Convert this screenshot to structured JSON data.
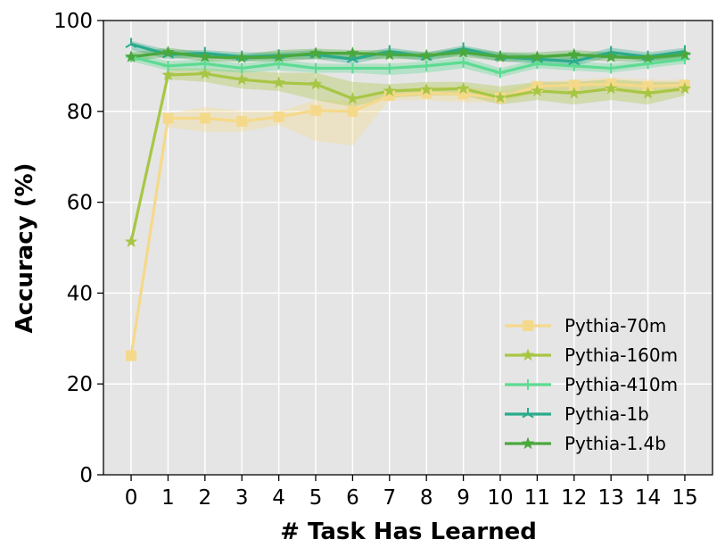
{
  "chart_data": {
    "type": "line",
    "title": "",
    "xlabel": "# Task Has Learned",
    "ylabel": "Accuracy (%)",
    "x": [
      0,
      1,
      2,
      3,
      4,
      5,
      6,
      7,
      8,
      9,
      10,
      11,
      12,
      13,
      14,
      15
    ],
    "xticks": [
      "0",
      "1",
      "2",
      "3",
      "4",
      "5",
      "6",
      "7",
      "8",
      "9",
      "10",
      "11",
      "12",
      "13",
      "14",
      "15"
    ],
    "ylim": [
      0,
      100
    ],
    "yticks": [
      "0",
      "20",
      "40",
      "60",
      "80",
      "100"
    ],
    "grid": true,
    "background": "#e5e5e5",
    "legend_position": "lower-right",
    "series": [
      {
        "name": "Pythia-70m",
        "color": "#f5d98a",
        "marker": "square",
        "values": [
          26.2,
          78.5,
          78.5,
          77.8,
          78.8,
          80.2,
          80.0,
          83.5,
          84.0,
          83.8,
          83.0,
          85.5,
          85.8,
          86.0,
          85.5,
          85.8
        ],
        "lower": [
          26.2,
          76.5,
          75.5,
          75.5,
          77.0,
          73.5,
          72.5,
          82.5,
          82.5,
          82.0,
          82.0,
          84.0,
          84.5,
          84.5,
          83.5,
          84.5
        ],
        "upper": [
          26.2,
          79.5,
          81.0,
          80.0,
          80.0,
          82.5,
          82.5,
          84.5,
          85.5,
          85.5,
          84.5,
          86.5,
          87.0,
          87.5,
          87.0,
          87.0
        ]
      },
      {
        "name": "Pythia-160m",
        "color": "#a8c645",
        "marker": "star",
        "values": [
          51.3,
          88.0,
          88.3,
          87.0,
          86.3,
          86.0,
          82.8,
          84.5,
          84.8,
          85.0,
          83.0,
          84.5,
          84.0,
          85.0,
          84.0,
          85.0
        ],
        "lower": [
          51.3,
          87.0,
          86.5,
          85.0,
          84.5,
          82.5,
          81.0,
          83.0,
          83.5,
          83.5,
          81.5,
          82.5,
          81.5,
          82.5,
          81.5,
          83.5
        ],
        "upper": [
          51.3,
          89.5,
          89.5,
          89.0,
          88.5,
          88.5,
          86.5,
          86.0,
          86.5,
          86.5,
          85.5,
          86.5,
          86.5,
          87.0,
          86.5,
          86.5
        ]
      },
      {
        "name": "Pythia-410m",
        "color": "#5ddb92",
        "marker": "plus",
        "values": [
          92.0,
          90.0,
          90.5,
          89.5,
          90.5,
          89.5,
          89.5,
          89.5,
          90.0,
          90.8,
          88.5,
          90.5,
          90.0,
          89.5,
          90.5,
          91.5
        ],
        "lower": [
          91.0,
          89.0,
          89.0,
          88.5,
          89.0,
          88.5,
          88.5,
          88.0,
          88.5,
          89.5,
          87.5,
          89.5,
          89.0,
          88.5,
          89.5,
          90.5
        ],
        "upper": [
          93.0,
          91.0,
          91.5,
          90.5,
          91.5,
          90.5,
          90.5,
          90.5,
          91.0,
          92.0,
          89.5,
          91.5,
          91.0,
          90.5,
          91.5,
          92.5
        ]
      },
      {
        "name": "Pythia-1b",
        "color": "#2aab8c",
        "marker": "tri",
        "values": [
          94.8,
          92.5,
          92.8,
          92.0,
          92.3,
          92.5,
          91.5,
          93.2,
          92.0,
          93.8,
          92.0,
          91.5,
          91.0,
          93.0,
          92.0,
          93.2
        ],
        "lower": [
          93.5,
          91.5,
          92.0,
          91.0,
          91.5,
          91.5,
          90.5,
          92.0,
          91.0,
          92.5,
          91.0,
          90.5,
          90.0,
          92.0,
          91.0,
          92.0
        ],
        "upper": [
          95.5,
          93.5,
          93.5,
          93.0,
          93.0,
          93.5,
          92.5,
          94.0,
          93.0,
          94.5,
          93.0,
          92.5,
          92.0,
          94.0,
          93.0,
          94.0
        ]
      },
      {
        "name": "Pythia-1.4b",
        "color": "#4aa83d",
        "marker": "star",
        "values": [
          92.0,
          93.0,
          92.0,
          91.8,
          92.0,
          92.8,
          92.8,
          92.5,
          92.3,
          93.0,
          92.0,
          92.0,
          92.5,
          92.0,
          91.8,
          92.5
        ],
        "lower": [
          91.0,
          92.0,
          91.0,
          91.0,
          91.0,
          91.5,
          91.5,
          91.5,
          91.5,
          92.0,
          91.0,
          91.0,
          91.5,
          91.0,
          91.0,
          91.5
        ],
        "upper": [
          93.0,
          94.0,
          93.0,
          92.5,
          93.5,
          93.8,
          93.5,
          93.5,
          93.0,
          94.0,
          93.0,
          93.0,
          93.5,
          93.0,
          92.5,
          93.5
        ]
      }
    ]
  }
}
